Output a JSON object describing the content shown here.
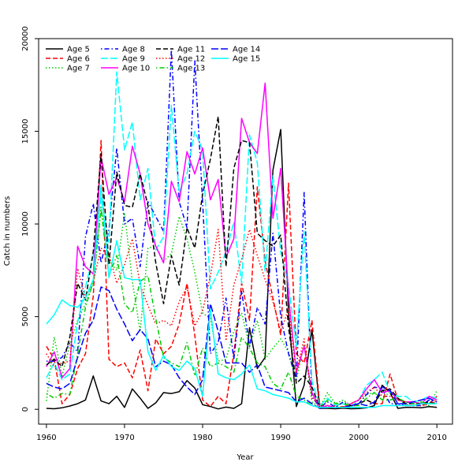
{
  "chart_data": {
    "type": "line",
    "xlabel": "Year",
    "ylabel": "Catch in numbers",
    "xlim": [
      1959,
      2012
    ],
    "ylim": [
      -800,
      20000
    ],
    "xticks": [
      1960,
      1970,
      1980,
      1990,
      2000,
      2010
    ],
    "yticks": [
      0,
      5000,
      10000,
      15000,
      20000
    ],
    "legend_position": "top-left",
    "legend_columns": 4,
    "grid": false,
    "x": [
      1960,
      1961,
      1962,
      1963,
      1964,
      1965,
      1966,
      1967,
      1968,
      1969,
      1970,
      1971,
      1972,
      1973,
      1974,
      1975,
      1976,
      1977,
      1978,
      1979,
      1980,
      1981,
      1982,
      1983,
      1984,
      1985,
      1986,
      1987,
      1988,
      1989,
      1990,
      1991,
      1992,
      1993,
      1994,
      1995,
      1996,
      1997,
      1998,
      1999,
      2000,
      2001,
      2002,
      2003,
      2004,
      2005,
      2006,
      2007,
      2008,
      2009,
      2010
    ],
    "series": [
      {
        "name": "Age 5",
        "color": "#000000",
        "dash": "solid",
        "values": [
          50,
          30,
          80,
          180,
          300,
          500,
          1800,
          450,
          300,
          700,
          100,
          1100,
          600,
          50,
          350,
          900,
          850,
          950,
          1550,
          1150,
          250,
          150,
          20,
          120,
          50,
          300,
          4400,
          2200,
          2800,
          12900,
          15100,
          5200,
          150,
          1300,
          4300,
          50,
          50,
          30,
          60,
          30,
          40,
          80,
          200,
          1300,
          900,
          50,
          100,
          100,
          80,
          150,
          100
        ]
      },
      {
        "name": "Age 6",
        "color": "#ff0000",
        "dash": "dashed",
        "values": [
          3400,
          2700,
          300,
          800,
          2200,
          3000,
          6100,
          14500,
          2700,
          2300,
          2500,
          1700,
          3200,
          1000,
          3800,
          3000,
          3400,
          4600,
          6800,
          4000,
          500,
          150,
          700,
          300,
          3000,
          6800,
          4800,
          12000,
          8000,
          6000,
          4000,
          12200,
          3000,
          2500,
          4800,
          200,
          200,
          100,
          150,
          100,
          300,
          500,
          300,
          300,
          1900,
          500,
          400,
          300,
          200,
          300,
          700
        ]
      },
      {
        "name": "Age 7",
        "color": "#00cc00",
        "dash": "dotted",
        "values": [
          450,
          3900,
          1800,
          3500,
          4800,
          5700,
          6800,
          10900,
          8000,
          7500,
          10600,
          6900,
          4200,
          8700,
          8800,
          8000,
          8400,
          10400,
          9200,
          7400,
          5200,
          4900,
          2600,
          2700,
          4200,
          5200,
          3400,
          4800,
          2700,
          3300,
          3800,
          3100,
          1600,
          3500,
          400,
          100,
          900,
          300,
          500,
          200,
          300,
          800,
          900,
          500,
          1000,
          600,
          200,
          400,
          300,
          200,
          1000
        ]
      },
      {
        "name": "Age 8",
        "color": "#0000ff",
        "dash": "dotdash",
        "values": [
          2600,
          2600,
          2800,
          3600,
          3100,
          9300,
          11100,
          7900,
          9700,
          14100,
          10000,
          10300,
          7700,
          11200,
          10400,
          9600,
          19400,
          11200,
          9800,
          18800,
          11200,
          3000,
          3600,
          6000,
          2700,
          6400,
          3400,
          5500,
          4600,
          9500,
          5000,
          3000,
          1600,
          11700,
          700,
          100,
          400,
          100,
          400,
          200,
          300,
          800,
          1200,
          1100,
          300,
          300,
          200,
          200,
          200,
          500,
          400
        ]
      },
      {
        "name": "Age 9",
        "color": "#00ffff",
        "dash": "longdash",
        "values": [
          1700,
          2500,
          1600,
          1900,
          4700,
          6600,
          8300,
          11400,
          9000,
          18200,
          14000,
          15500,
          11300,
          13000,
          8600,
          9300,
          16400,
          11700,
          12700,
          15000,
          14000,
          6500,
          7400,
          8500,
          10100,
          6800,
          14800,
          13300,
          7400,
          12600,
          8500,
          6700,
          3400,
          9600,
          1500,
          200,
          600,
          200,
          300,
          100,
          500,
          1300,
          1600,
          2000,
          900,
          700,
          700,
          400,
          500,
          700,
          600
        ]
      },
      {
        "name": "Age 10",
        "color": "#ff00ff",
        "dash": "solid",
        "values": [
          2300,
          3100,
          1700,
          2200,
          8800,
          7700,
          7300,
          13600,
          11600,
          12500,
          11200,
          14200,
          12700,
          10000,
          8800,
          7900,
          12300,
          11200,
          13900,
          12700,
          14100,
          11300,
          12400,
          8200,
          9200,
          15700,
          14400,
          13800,
          17600,
          10300,
          13000,
          6100,
          2000,
          3400,
          900,
          100,
          200,
          100,
          100,
          300,
          500,
          1100,
          1600,
          900,
          1000,
          500,
          400,
          400,
          300,
          700,
          500
        ]
      },
      {
        "name": "Age 11",
        "color": "#000000",
        "dash": "dashed",
        "values": [
          2400,
          2700,
          2300,
          3900,
          6800,
          5900,
          8500,
          13800,
          7800,
          12800,
          11000,
          10900,
          12700,
          11000,
          7900,
          5700,
          8300,
          6700,
          9800,
          8700,
          11600,
          13500,
          15800,
          7700,
          13000,
          14500,
          14400,
          9500,
          9100,
          8800,
          9400,
          4400,
          1400,
          1800,
          1200,
          100,
          100,
          100,
          100,
          200,
          300,
          500,
          300,
          1000,
          1100,
          600,
          300,
          300,
          300,
          400,
          300
        ]
      },
      {
        "name": "Age 12",
        "color": "#ff0000",
        "dash": "dotted",
        "values": [
          3000,
          2300,
          2500,
          2600,
          7600,
          6000,
          6900,
          8700,
          8400,
          6800,
          7800,
          9200,
          6700,
          5600,
          4600,
          4800,
          4500,
          5800,
          6600,
          4500,
          5300,
          7200,
          9700,
          3700,
          6700,
          8100,
          9700,
          8300,
          7000,
          5800,
          4200,
          5400,
          2000,
          3800,
          600,
          300,
          100,
          200,
          100,
          300,
          500,
          900,
          1200,
          700,
          700,
          500,
          400,
          300,
          200,
          300,
          500
        ]
      },
      {
        "name": "Age 13",
        "color": "#00cc00",
        "dash": "dotdash",
        "values": [
          850,
          600,
          850,
          800,
          3000,
          5500,
          6900,
          10800,
          7200,
          8300,
          5700,
          5200,
          6900,
          7200,
          4900,
          2800,
          2500,
          2300,
          3600,
          1800,
          3300,
          2300,
          2500,
          2300,
          2000,
          3900,
          3300,
          2500,
          2300,
          1400,
          1100,
          2000,
          700,
          500,
          200,
          100,
          500,
          300,
          300,
          200,
          200,
          600,
          900,
          500,
          500,
          600,
          400,
          300,
          400,
          300,
          300
        ]
      },
      {
        "name": "Age 14",
        "color": "#0000ff",
        "dash": "longdash",
        "values": [
          1400,
          1200,
          1100,
          1400,
          2800,
          4100,
          4800,
          6600,
          6400,
          5400,
          4600,
          3700,
          4300,
          3800,
          2300,
          2600,
          2400,
          1700,
          1200,
          800,
          1600,
          5700,
          4200,
          2500,
          2500,
          2500,
          2000,
          2400,
          1200,
          1100,
          1000,
          900,
          400,
          600,
          300,
          50,
          100,
          100,
          100,
          200,
          300,
          200,
          400,
          1200,
          1000,
          300,
          300,
          400,
          500,
          600,
          400
        ]
      },
      {
        "name": "Age 15",
        "color": "#00ffff",
        "dash": "solid",
        "values": [
          4600,
          5100,
          5900,
          5600,
          5500,
          6000,
          7000,
          12100,
          7100,
          9100,
          7100,
          7000,
          7000,
          3100,
          2100,
          2900,
          2300,
          2100,
          2600,
          2200,
          700,
          5400,
          1900,
          1700,
          1600,
          1900,
          2400,
          1100,
          1000,
          800,
          700,
          600,
          400,
          400,
          200,
          100,
          100,
          100,
          100,
          100,
          100,
          100,
          100,
          200,
          200,
          200,
          200,
          200,
          300,
          300,
          300
        ]
      }
    ]
  }
}
